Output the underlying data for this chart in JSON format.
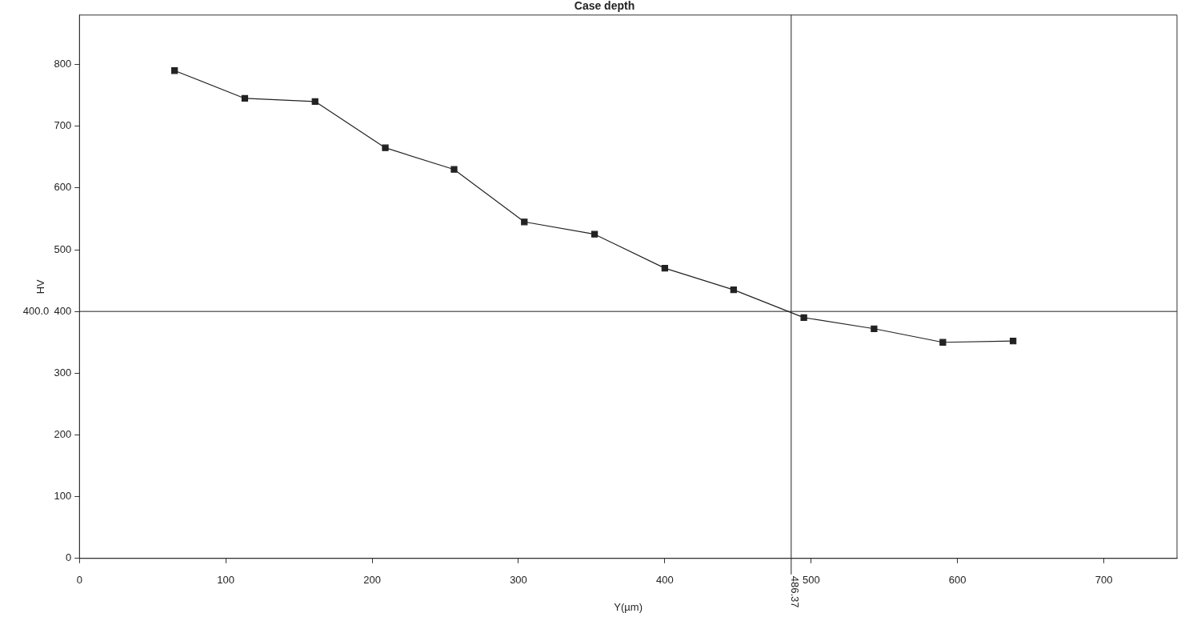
{
  "chart_data": {
    "type": "line",
    "title": "Case depth",
    "xlabel": "Y(µm)",
    "ylabel": "HV",
    "x": [
      65,
      113,
      161,
      209,
      256,
      304,
      352,
      400,
      447,
      495,
      543,
      590,
      638
    ],
    "series": [
      {
        "color": "#222222",
        "values": [
          790,
          745,
          740,
          665,
          630,
          545,
          525,
          470,
          435,
          390,
          372,
          350,
          352
        ]
      }
    ],
    "xlim": [
      0,
      750
    ],
    "ylim": [
      0,
      880
    ],
    "xticks": [
      0,
      100,
      200,
      300,
      400,
      500,
      600,
      700
    ],
    "yticks": [
      0,
      100,
      200,
      300,
      400,
      500,
      600,
      700,
      800
    ],
    "ref_lines": [
      {
        "axis": "y",
        "value": 400,
        "label": "400.0",
        "color": "#222222"
      },
      {
        "axis": "x",
        "value": 486.37,
        "label": "486.37",
        "color": "#222222"
      }
    ],
    "grid": false,
    "legend": false,
    "marker": "square",
    "line_style": "solid"
  }
}
